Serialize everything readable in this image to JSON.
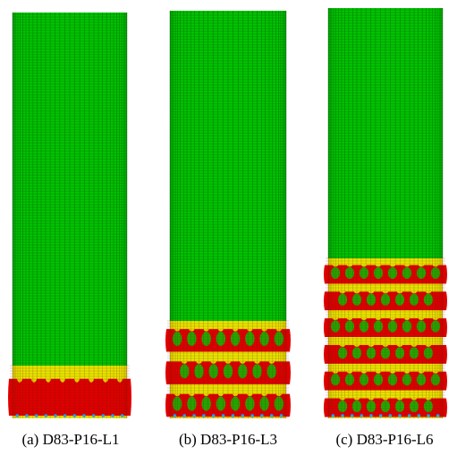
{
  "panels": [
    {
      "caption": "(a) D83-P16-L1",
      "buckle_fraction": 0.13,
      "folds": 1
    },
    {
      "caption": "(b) D83-P16-L3",
      "buckle_fraction": 0.24,
      "folds": 3
    },
    {
      "caption": "(c) D83-P16-L6",
      "buckle_fraction": 0.39,
      "folds": 6
    }
  ],
  "colors": {
    "intact": "#00c800",
    "mesh_line": "#0a5a0a",
    "high_strain": "#e00000",
    "mid_strain": "#e8e800",
    "low_strain": "#20a0ff",
    "background": "#ffffff"
  }
}
